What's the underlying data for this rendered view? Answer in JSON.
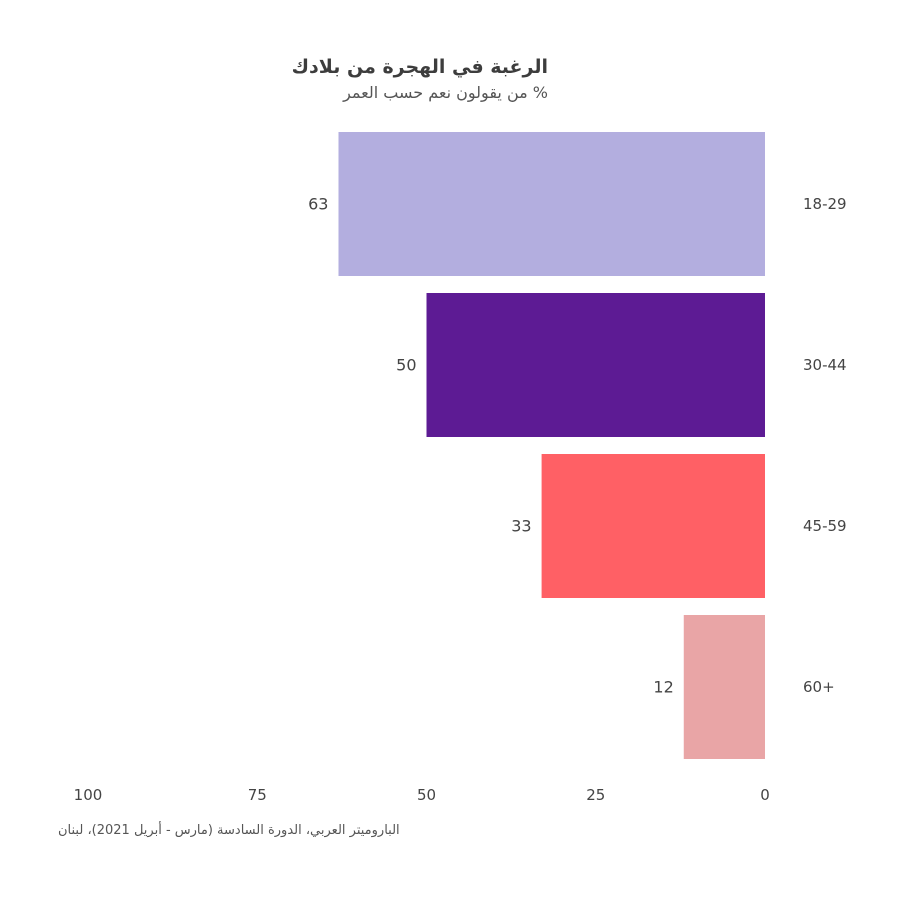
{
  "title": "الرغبة في الهجرة من بلادك",
  "subtitle": "% من يقولون نعم حسب العمر",
  "source": "الباروميتر العربي، الدورة السادسة (مارس - أبريل 2021)، لبنان",
  "chart_data": {
    "type": "bar",
    "orientation": "horizontal",
    "direction": "right-to-left",
    "categories": [
      "18-29",
      "30-44",
      "45-59",
      "60+"
    ],
    "values": [
      63,
      50,
      33,
      12
    ],
    "colors": [
      "#b3aedf",
      "#5d1b94",
      "#ff6065",
      "#e9a5a6"
    ],
    "xlim": [
      0,
      100
    ],
    "xticks": [
      100,
      75,
      50,
      25,
      0
    ],
    "xtick_labels": [
      "100",
      "75",
      "50",
      "25",
      "0"
    ],
    "data_labels": [
      "63",
      "50",
      "33",
      "12"
    ],
    "grid": false,
    "legend": "none"
  }
}
